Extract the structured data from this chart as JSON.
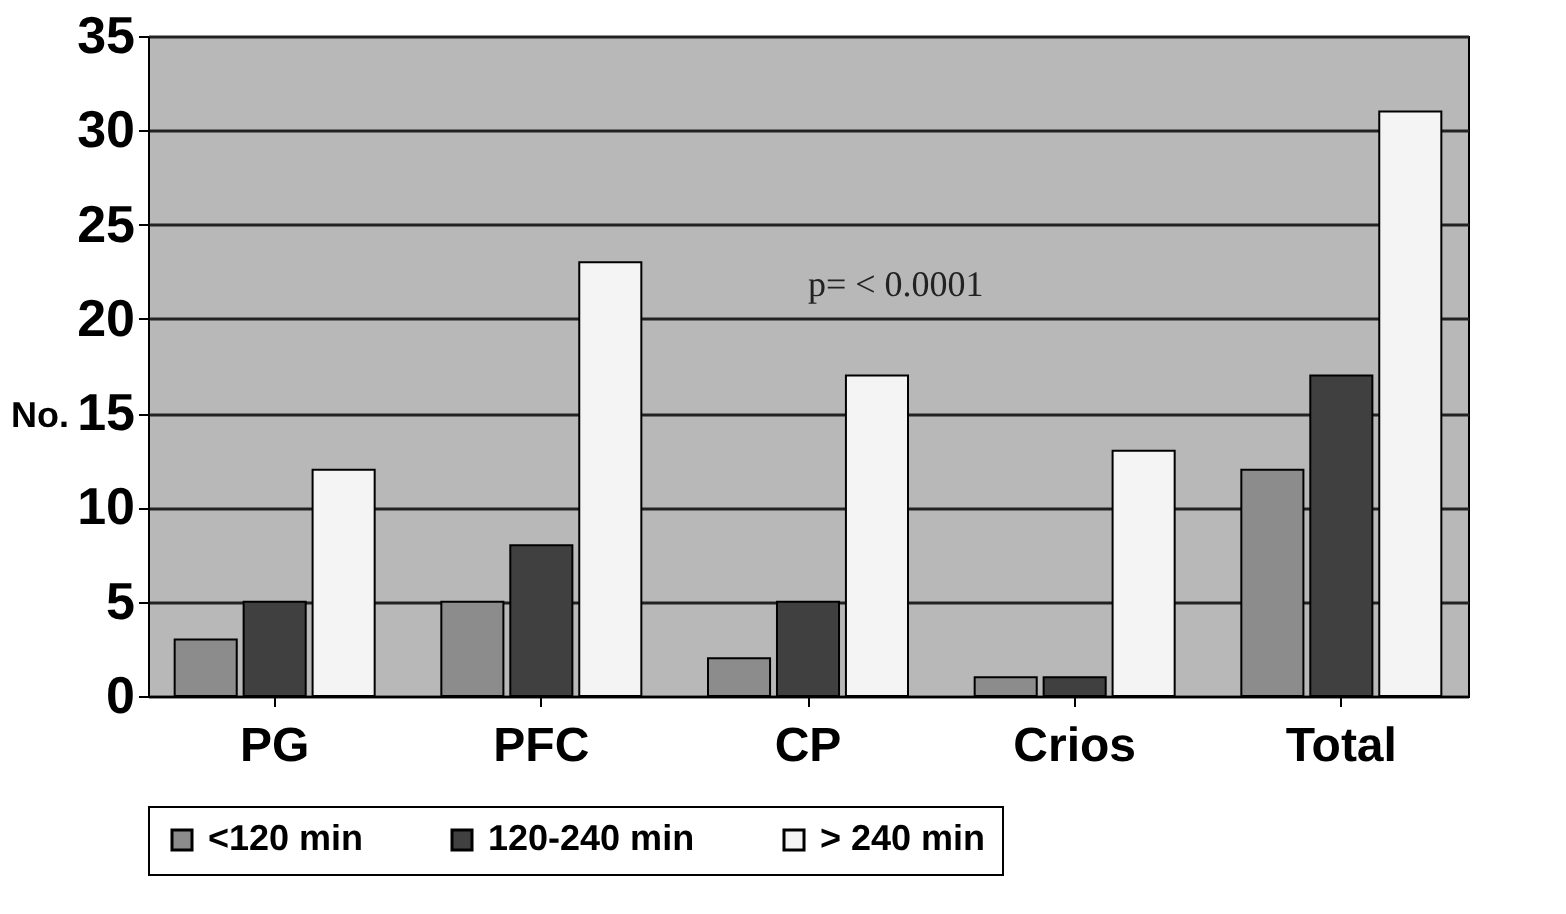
{
  "chart_data": {
    "type": "bar",
    "ylabel": "No.",
    "categories": [
      "PG",
      "PFC",
      "CP",
      "Crios",
      "Total"
    ],
    "series": [
      {
        "name": "<120 min",
        "color": "#8c8c8c",
        "values": [
          3,
          5,
          2,
          1,
          12
        ]
      },
      {
        "name": "120-240 min",
        "color": "#404040",
        "values": [
          5,
          8,
          5,
          1,
          17
        ]
      },
      {
        "name": "> 240 min",
        "color": "#f4f4f4",
        "values": [
          12,
          23,
          17,
          13,
          31
        ]
      }
    ],
    "ylim": [
      0,
      35
    ],
    "yticks": [
      0,
      5,
      10,
      15,
      20,
      25,
      30,
      35
    ],
    "grid": "y",
    "legend": "bottom",
    "annotations": [
      "p= < 0.0001"
    ]
  }
}
